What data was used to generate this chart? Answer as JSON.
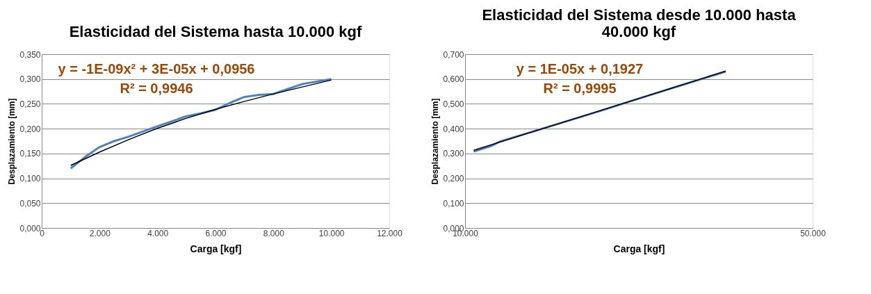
{
  "chart_data": [
    {
      "type": "line",
      "title": "Elasticidad del Sistema hasta 10.000 kgf",
      "xlabel": "Carga [kgf]",
      "ylabel": "Desplazamiento [mm]",
      "series": [
        {
          "color": "#4f81bd",
          "x": [
            1000,
            1500,
            2000,
            2500,
            3000,
            4000,
            5000,
            5500,
            6000,
            6500,
            7000,
            7500,
            8000,
            8500,
            9000,
            10000
          ],
          "values": [
            0.12,
            0.143,
            0.163,
            0.175,
            0.184,
            0.205,
            0.225,
            0.231,
            0.238,
            0.252,
            0.264,
            0.268,
            0.27,
            0.28,
            0.29,
            0.3
          ]
        },
        {
          "color": "#000000",
          "type": "line",
          "x": [
            1000,
            2000,
            3000,
            4000,
            5000,
            6000,
            7000,
            8000,
            9000,
            10000
          ],
          "values": [
            0.126,
            0.153,
            0.178,
            0.201,
            0.221,
            0.239,
            0.255,
            0.27,
            0.284,
            0.298
          ]
        }
      ],
      "xlim": [
        0,
        12000
      ],
      "xticks": [
        0,
        {
          "value": 2000,
          "label": "2.000"
        },
        {
          "value": 4000,
          "label": "4.000"
        },
        {
          "value": 6000,
          "label": "6.000"
        },
        {
          "value": 8000,
          "label": "8.000"
        },
        {
          "value": 10000,
          "label": "10.000"
        },
        {
          "value": 12000,
          "label": "12.000"
        }
      ],
      "ylim": [
        0,
        0.35
      ],
      "yticks": [
        {
          "value": 0,
          "label": "0,000"
        },
        {
          "value": 0.05,
          "label": "0,050"
        },
        {
          "value": 0.1,
          "label": "0,100"
        },
        {
          "value": 0.15,
          "label": "0,150"
        },
        {
          "value": 0.2,
          "label": "0,200"
        },
        {
          "value": 0.25,
          "label": "0,250"
        },
        {
          "value": 0.3,
          "label": "0,300"
        },
        {
          "value": 0.35,
          "label": "0,350"
        }
      ],
      "annotations": [
        "y = -1E-09x² + 3E-05x + 0,0956",
        "R² = 0,9946"
      ],
      "grid": "y",
      "marker": "none",
      "line_style": "solid"
    },
    {
      "type": "line",
      "title": "Elasticidad del Sistema desde 10.000 hasta 40.000 kgf",
      "xlabel": "Carga [kgf]",
      "ylabel": "Desplazamiento [mm]",
      "series": [
        {
          "color": "#4f81bd",
          "x": [
            11000,
            13000,
            14000,
            20000,
            25000,
            30000,
            35000,
            40000
          ],
          "values": [
            0.308,
            0.33,
            0.348,
            0.412,
            0.465,
            0.521,
            0.576,
            0.63
          ]
        },
        {
          "color": "#000000",
          "type": "line",
          "x": [
            11000,
            40000
          ],
          "values": [
            0.313,
            0.632
          ]
        }
      ],
      "xlim": [
        10000,
        50000
      ],
      "xticks": [
        {
          "value": 10000,
          "label": "10.000"
        },
        {
          "value": 50000,
          "label": "50.000"
        }
      ],
      "ylim": [
        0,
        0.7
      ],
      "yticks": [
        {
          "value": 0,
          "label": "0,000"
        },
        {
          "value": 0.1,
          "label": "0,100"
        },
        {
          "value": 0.2,
          "label": "0,200"
        },
        {
          "value": 0.3,
          "label": "0,300"
        },
        {
          "value": 0.4,
          "label": "0,400"
        },
        {
          "value": 0.5,
          "label": "0,500"
        },
        {
          "value": 0.6,
          "label": "0,600"
        },
        {
          "value": 0.7,
          "label": "0,700"
        }
      ],
      "annotations": [
        "y = 1E-05x + 0,1927",
        "R² = 0,9995"
      ],
      "grid": "y",
      "marker": "none",
      "line_style": "solid"
    }
  ]
}
